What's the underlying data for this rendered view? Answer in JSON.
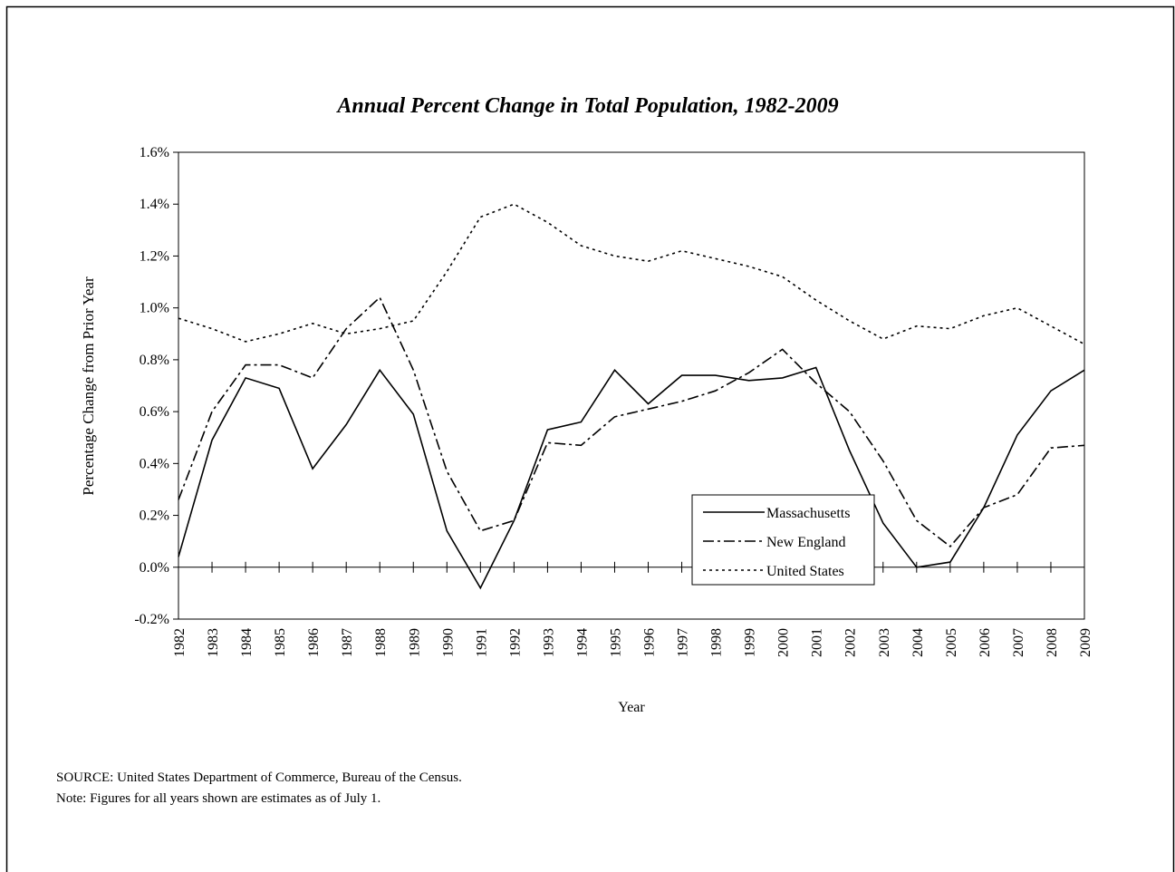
{
  "chart_data": {
    "type": "line",
    "title": "Annual Percent Change in Total Population, 1982-2009",
    "y_label": "Percentage Change from Prior Year",
    "x_label": "Year",
    "source": "SOURCE:  United States Department of Commerce, Bureau of the Census.",
    "note": "Note:  Figures for all years shown are estimates as of July 1.",
    "categories": [
      "1982",
      "1983",
      "1984",
      "1985",
      "1986",
      "1987",
      "1988",
      "1989",
      "1990",
      "1991",
      "1992",
      "1993",
      "1994",
      "1995",
      "1996",
      "1997",
      "1998",
      "1999",
      "2000",
      "2001",
      "2002",
      "2003",
      "2004",
      "2005",
      "2006",
      "2007",
      "2008",
      "2009"
    ],
    "series": [
      {
        "name": "Massachusetts",
        "color": "#000000",
        "dash": "none",
        "values": [
          0.04,
          0.49,
          0.73,
          0.69,
          0.38,
          0.55,
          0.76,
          0.59,
          0.14,
          -0.08,
          0.18,
          0.53,
          0.56,
          0.76,
          0.63,
          0.74,
          0.74,
          0.72,
          0.73,
          0.77,
          0.45,
          0.17,
          0.0,
          0.02,
          0.23,
          0.51,
          0.68,
          0.76
        ]
      },
      {
        "name": "New England",
        "color": "#000000",
        "dash": "12,4,3,4",
        "values": [
          0.26,
          0.6,
          0.78,
          0.78,
          0.73,
          0.92,
          1.04,
          0.76,
          0.37,
          0.14,
          0.18,
          0.48,
          0.47,
          0.58,
          0.61,
          0.64,
          0.68,
          0.75,
          0.84,
          0.71,
          0.6,
          0.41,
          0.18,
          0.08,
          0.23,
          0.28,
          0.46,
          0.47
        ]
      },
      {
        "name": "United States",
        "color": "#000000",
        "dash": "3,4",
        "values": [
          0.96,
          0.92,
          0.87,
          0.9,
          0.94,
          0.9,
          0.92,
          0.95,
          1.14,
          1.35,
          1.4,
          1.33,
          1.24,
          1.2,
          1.18,
          1.22,
          1.19,
          1.16,
          1.12,
          1.03,
          0.95,
          0.88,
          0.93,
          0.92,
          0.97,
          1.0,
          0.93,
          0.86
        ]
      }
    ],
    "ylim": [
      -0.2,
      1.6
    ],
    "yticks": [
      {
        "value": -0.2,
        "label": "-0.2%"
      },
      {
        "value": 0,
        "label": "0.0%"
      },
      {
        "value": 0.2,
        "label": "0.2%"
      },
      {
        "value": 0.4,
        "label": "0.4%"
      },
      {
        "value": 0.6,
        "label": "0.6%"
      },
      {
        "value": 0.8,
        "label": "0.8%"
      },
      {
        "value": 1.0,
        "label": "1.0%"
      },
      {
        "value": 1.2,
        "label": "1.2%"
      },
      {
        "value": 1.4,
        "label": "1.4%"
      },
      {
        "value": 1.6,
        "label": "1.6%"
      }
    ],
    "grid": false,
    "legend": "lower-center"
  }
}
